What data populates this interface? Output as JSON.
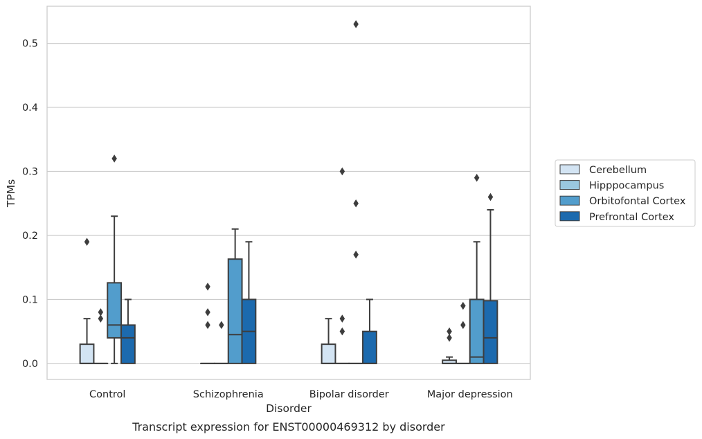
{
  "chart_data": {
    "type": "box",
    "title": "",
    "caption": "Transcript expression for ENST00000469312 by disorder",
    "xlabel": "Disorder",
    "ylabel": "TPMs",
    "ylim": [
      -0.025,
      0.558
    ],
    "yticks": [
      0.0,
      0.1,
      0.2,
      0.3,
      0.4,
      0.5
    ],
    "ytick_labels": [
      "0.0",
      "0.1",
      "0.2",
      "0.3",
      "0.4",
      "0.5"
    ],
    "grid": "horizontal",
    "legend_position": "right",
    "categories": [
      "Control",
      "Schizophrenia",
      "Bipolar disorder",
      "Major depression"
    ],
    "series": [
      {
        "name": "Cerebellum",
        "color": "#d3e4f3",
        "boxes": [
          {
            "category": "Control",
            "whislo": 0.0,
            "q1": 0.0,
            "med": 0.0,
            "q3": 0.03,
            "whishi": 0.07,
            "fliers": [
              0.19
            ]
          },
          {
            "category": "Schizophrenia",
            "whislo": 0.0,
            "q1": 0.0,
            "med": 0.0,
            "q3": 0.0,
            "whishi": 0.0,
            "fliers": [
              0.06,
              0.08,
              0.12
            ]
          },
          {
            "category": "Bipolar disorder",
            "whislo": 0.0,
            "q1": 0.0,
            "med": 0.0,
            "q3": 0.03,
            "whishi": 0.07,
            "fliers": []
          },
          {
            "category": "Major depression",
            "whislo": 0.0,
            "q1": 0.0,
            "med": 0.0,
            "q3": 0.005,
            "whishi": 0.01,
            "fliers": [
              0.04,
              0.05
            ]
          }
        ]
      },
      {
        "name": "Hipppocampus",
        "color": "#9ac8e0",
        "boxes": [
          {
            "category": "Control",
            "whislo": 0.0,
            "q1": 0.0,
            "med": 0.0,
            "q3": 0.0,
            "whishi": 0.0,
            "fliers": [
              0.07,
              0.08
            ]
          },
          {
            "category": "Schizophrenia",
            "whislo": 0.0,
            "q1": 0.0,
            "med": 0.0,
            "q3": 0.0,
            "whishi": 0.0,
            "fliers": [
              0.06
            ]
          },
          {
            "category": "Bipolar disorder",
            "whislo": 0.0,
            "q1": 0.0,
            "med": 0.0,
            "q3": 0.0,
            "whishi": 0.0,
            "fliers": [
              0.05,
              0.07,
              0.3
            ]
          },
          {
            "category": "Major depression",
            "whislo": 0.0,
            "q1": 0.0,
            "med": 0.0,
            "q3": 0.0,
            "whishi": 0.0,
            "fliers": [
              0.06,
              0.09
            ]
          }
        ]
      },
      {
        "name": "Orbitofontal Cortex",
        "color": "#529dcc",
        "boxes": [
          {
            "category": "Control",
            "whislo": 0.0,
            "q1": 0.04,
            "med": 0.06,
            "q3": 0.126,
            "whishi": 0.23,
            "fliers": [
              0.32
            ]
          },
          {
            "category": "Schizophrenia",
            "whislo": 0.0,
            "q1": 0.0,
            "med": 0.045,
            "q3": 0.163,
            "whishi": 0.21,
            "fliers": []
          },
          {
            "category": "Bipolar disorder",
            "whislo": 0.0,
            "q1": 0.0,
            "med": 0.0,
            "q3": 0.0,
            "whishi": 0.0,
            "fliers": [
              0.17,
              0.25,
              0.53
            ]
          },
          {
            "category": "Major depression",
            "whislo": 0.0,
            "q1": 0.0,
            "med": 0.01,
            "q3": 0.1,
            "whishi": 0.19,
            "fliers": [
              0.29
            ]
          }
        ]
      },
      {
        "name": "Prefrontal Cortex",
        "color": "#1c6aae",
        "boxes": [
          {
            "category": "Control",
            "whislo": 0.0,
            "q1": 0.0,
            "med": 0.04,
            "q3": 0.06,
            "whishi": 0.1,
            "fliers": []
          },
          {
            "category": "Schizophrenia",
            "whislo": 0.0,
            "q1": 0.0,
            "med": 0.05,
            "q3": 0.1,
            "whishi": 0.19,
            "fliers": []
          },
          {
            "category": "Bipolar disorder",
            "whislo": 0.0,
            "q1": 0.0,
            "med": 0.0,
            "q3": 0.05,
            "whishi": 0.1,
            "fliers": []
          },
          {
            "category": "Major depression",
            "whislo": 0.0,
            "q1": 0.0,
            "med": 0.04,
            "q3": 0.098,
            "whishi": 0.24,
            "fliers": [
              0.26
            ]
          }
        ]
      }
    ]
  },
  "colors": {
    "grid": "#cccccc",
    "frame": "#cccccc",
    "line": "#3d3d3d",
    "text": "#262626",
    "background": "#ffffff"
  }
}
